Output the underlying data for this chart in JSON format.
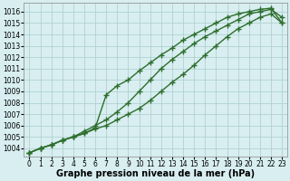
{
  "bg_color": "#d8eef0",
  "grid_color": "#aacccc",
  "line_color": "#2d6e2d",
  "marker": "+",
  "markersize": 4,
  "linewidth": 1.0,
  "xlabel": "Graphe pression niveau de la mer (hPa)",
  "xlabel_fontsize": 7,
  "tick_fontsize": 5.5,
  "xlim": [
    -0.5,
    23.5
  ],
  "ylim": [
    1003.3,
    1016.8
  ],
  "yticks": [
    1004,
    1005,
    1006,
    1007,
    1008,
    1009,
    1010,
    1011,
    1012,
    1013,
    1014,
    1015,
    1016
  ],
  "xticks": [
    0,
    1,
    2,
    3,
    4,
    5,
    6,
    7,
    8,
    9,
    10,
    11,
    12,
    13,
    14,
    15,
    16,
    17,
    18,
    19,
    20,
    21,
    22,
    23
  ],
  "line1_x": [
    0,
    1,
    2,
    3,
    4,
    5,
    6,
    7,
    8,
    9,
    10,
    11,
    12,
    13,
    14,
    15,
    16,
    17,
    18,
    19,
    20,
    21,
    22,
    23
  ],
  "line1_y": [
    1003.6,
    1004.0,
    1004.3,
    1004.7,
    1005.0,
    1005.3,
    1005.7,
    1006.0,
    1006.5,
    1007.0,
    1007.5,
    1008.2,
    1009.0,
    1009.8,
    1010.5,
    1011.3,
    1012.2,
    1013.0,
    1013.8,
    1014.5,
    1015.0,
    1015.5,
    1015.8,
    1015.0
  ],
  "line2_x": [
    0,
    1,
    2,
    3,
    4,
    5,
    6,
    7,
    8,
    9,
    10,
    11,
    12,
    13,
    14,
    15,
    16,
    17,
    18,
    19,
    20,
    21,
    22,
    23
  ],
  "line2_y": [
    1003.6,
    1004.0,
    1004.3,
    1004.7,
    1005.0,
    1005.3,
    1005.8,
    1008.7,
    1009.5,
    1010.0,
    1010.8,
    1011.5,
    1012.2,
    1012.8,
    1013.5,
    1014.0,
    1014.5,
    1015.0,
    1015.5,
    1015.8,
    1016.0,
    1016.2,
    1016.3,
    1015.0
  ],
  "line3_x": [
    0,
    1,
    2,
    3,
    4,
    5,
    6,
    7,
    8,
    9,
    10,
    11,
    12,
    13,
    14,
    15,
    16,
    17,
    18,
    19,
    20,
    21,
    22,
    23
  ],
  "line3_y": [
    1003.6,
    1004.0,
    1004.3,
    1004.7,
    1005.0,
    1005.5,
    1006.0,
    1006.5,
    1007.2,
    1008.0,
    1009.0,
    1010.0,
    1011.0,
    1011.8,
    1012.5,
    1013.2,
    1013.8,
    1014.3,
    1014.8,
    1015.3,
    1015.8,
    1016.0,
    1016.2,
    1015.5
  ]
}
